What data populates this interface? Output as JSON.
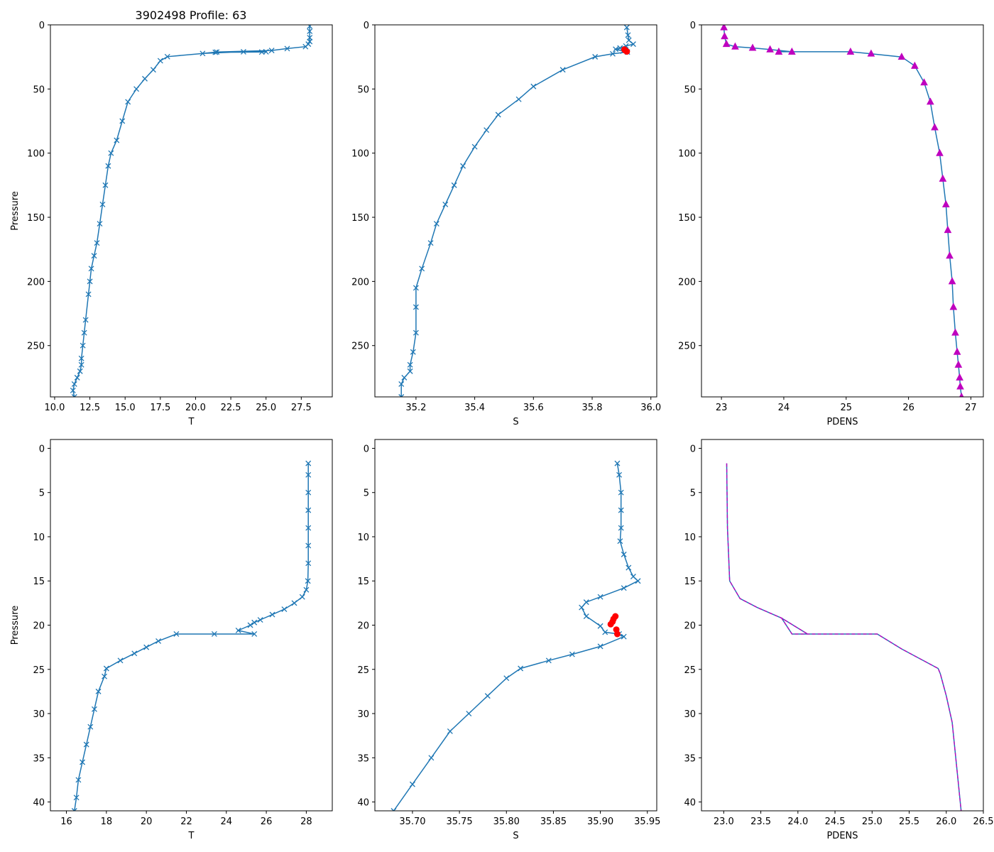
{
  "figure": {
    "title": "3902498 Profile: 63",
    "colors": {
      "series": "#1f77b4",
      "flagged": "#ff0000",
      "pdens": "#bf00bf",
      "axis": "#000000"
    }
  },
  "chart_data": [
    {
      "id": "T-full",
      "type": "line",
      "marker": "x",
      "xlabel": "T",
      "ylabel": "Pressure",
      "xlim": [
        9.7,
        29.7
      ],
      "ylim": [
        290,
        0
      ],
      "xticks": [
        10.0,
        12.5,
        15.0,
        17.5,
        20.0,
        22.5,
        25.0,
        27.5
      ],
      "xtick_labels": [
        "10.0",
        "12.5",
        "15.0",
        "17.5",
        "20.0",
        "22.5",
        "25.0",
        "27.5"
      ],
      "yticks": [
        0,
        50,
        100,
        150,
        200,
        250
      ],
      "ytick_labels": [
        "0",
        "50",
        "100",
        "150",
        "200",
        "250"
      ],
      "series": [
        {
          "name": "T",
          "x": [
            28.1,
            28.1,
            28.1,
            28.1,
            28.0,
            27.8,
            26.5,
            25.4,
            21.5,
            20.5,
            23.4,
            25.0,
            24.7,
            21.4,
            18.0,
            17.5,
            17.0,
            16.4,
            15.8,
            15.2,
            14.8,
            14.4,
            14.0,
            13.8,
            13.6,
            13.4,
            13.2,
            13.0,
            12.8,
            12.6,
            12.5,
            12.4,
            12.2,
            12.1,
            12.0,
            11.9,
            11.9,
            11.8,
            11.6,
            11.4,
            11.3,
            11.4
          ],
          "y": [
            1,
            5,
            10,
            13,
            15,
            17,
            18.5,
            20,
            21.2,
            22.3,
            21,
            21,
            21.2,
            21.4,
            24.8,
            28,
            35,
            42,
            50,
            60,
            75,
            90,
            100,
            110,
            125,
            140,
            155,
            170,
            180,
            190,
            200,
            210,
            230,
            240,
            250,
            260,
            265,
            270,
            275,
            280,
            285,
            290
          ]
        }
      ]
    },
    {
      "id": "S-full",
      "type": "line",
      "marker": "x",
      "xlabel": "S",
      "ylabel": "",
      "xlim": [
        35.06,
        36.02
      ],
      "ylim": [
        290,
        0
      ],
      "xticks": [
        35.2,
        35.4,
        35.6,
        35.8,
        36.0
      ],
      "xtick_labels": [
        "35.2",
        "35.4",
        "35.6",
        "35.8",
        "36.0"
      ],
      "yticks": [
        0,
        50,
        100,
        150,
        200,
        250
      ],
      "ytick_labels": [
        "0",
        "50",
        "100",
        "150",
        "200",
        "250"
      ],
      "series": [
        {
          "name": "S",
          "x": [
            35.918,
            35.922,
            35.925,
            35.94,
            35.915,
            35.895,
            35.88,
            35.905,
            35.92,
            35.87,
            35.81,
            35.7,
            35.6,
            35.55,
            35.48,
            35.44,
            35.4,
            35.36,
            35.33,
            35.3,
            35.27,
            35.25,
            35.22,
            35.2,
            35.2,
            35.2,
            35.19,
            35.18,
            35.18,
            35.16,
            35.15,
            35.15
          ],
          "y": [
            2,
            8,
            12,
            15,
            16.5,
            18,
            19,
            20.5,
            21.2,
            22.6,
            24.9,
            35,
            48,
            58,
            70,
            82,
            95,
            110,
            125,
            140,
            155,
            170,
            190,
            205,
            220,
            240,
            255,
            265,
            270,
            275,
            280,
            290
          ]
        }
      ],
      "flagged": {
        "x": [
          35.91,
          35.915,
          35.918,
          35.912
        ],
        "y": [
          19.2,
          20.2,
          20.8,
          19.8
        ]
      }
    },
    {
      "id": "PDENS-full",
      "type": "line",
      "marker": "^",
      "xlabel": "PDENS",
      "ylabel": "",
      "xlim": [
        22.68,
        27.2
      ],
      "ylim": [
        290,
        0
      ],
      "xticks": [
        23,
        24,
        25,
        26,
        27
      ],
      "xtick_labels": [
        "23",
        "24",
        "25",
        "26",
        "27"
      ],
      "yticks": [
        0,
        50,
        100,
        150,
        200,
        250
      ],
      "ytick_labels": [
        "0",
        "50",
        "100",
        "150",
        "200",
        "250"
      ],
      "series": [
        {
          "name": "PDENS",
          "x": [
            23.04,
            23.05,
            23.08,
            23.22,
            23.5,
            23.78,
            24.13,
            23.92,
            25.07,
            25.4,
            25.89,
            26.1,
            26.25,
            26.35,
            26.42,
            26.5,
            26.55,
            26.6,
            26.63,
            26.66,
            26.7,
            26.72,
            26.75,
            26.78,
            26.8,
            26.82,
            26.83,
            26.85
          ],
          "y": [
            2,
            9,
            15,
            17,
            18,
            19.2,
            21,
            21,
            21,
            22.5,
            25,
            32,
            45,
            60,
            80,
            100,
            120,
            140,
            160,
            180,
            200,
            220,
            240,
            255,
            265,
            275,
            282,
            290
          ]
        }
      ]
    },
    {
      "id": "T-zoom",
      "type": "line",
      "marker": "x",
      "xlabel": "T",
      "ylabel": "Pressure",
      "xlim": [
        15.2,
        29.3
      ],
      "ylim": [
        41,
        -1
      ],
      "xticks": [
        16,
        18,
        20,
        22,
        24,
        26,
        28
      ],
      "xtick_labels": [
        "16",
        "18",
        "20",
        "22",
        "24",
        "26",
        "28"
      ],
      "yticks": [
        0,
        5,
        10,
        15,
        20,
        25,
        30,
        35,
        40
      ],
      "ytick_labels": [
        "0",
        "5",
        "10",
        "15",
        "20",
        "25",
        "30",
        "35",
        "40"
      ],
      "series": [
        {
          "name": "T",
          "x": [
            28.1,
            28.1,
            28.1,
            28.1,
            28.1,
            28.1,
            28.1,
            28.08,
            28.0,
            27.8,
            27.4,
            26.9,
            26.3,
            25.7,
            25.4,
            25.2,
            24.6,
            25.4,
            23.4,
            21.5,
            20.6,
            20.0,
            19.4,
            18.7,
            18.0,
            17.9,
            17.6,
            17.4,
            17.2,
            17.0,
            16.8,
            16.6,
            16.5,
            16.4
          ],
          "y": [
            1.7,
            3,
            5,
            7,
            9,
            11,
            13,
            15,
            16,
            16.8,
            17.5,
            18.2,
            18.8,
            19.4,
            19.7,
            20,
            20.6,
            21,
            21,
            21,
            21.8,
            22.5,
            23.2,
            24,
            24.9,
            25.8,
            27.5,
            29.5,
            31.5,
            33.5,
            35.5,
            37.5,
            39.5,
            41
          ]
        }
      ]
    },
    {
      "id": "S-zoom",
      "type": "line",
      "marker": "x",
      "xlabel": "S",
      "ylabel": "",
      "xlim": [
        35.66,
        35.96
      ],
      "ylim": [
        41,
        -1
      ],
      "xticks": [
        35.7,
        35.75,
        35.8,
        35.85,
        35.9,
        35.95
      ],
      "xtick_labels": [
        "35.70",
        "35.75",
        "35.80",
        "35.85",
        "35.90",
        "35.95"
      ],
      "yticks": [
        0,
        5,
        10,
        15,
        20,
        25,
        30,
        35,
        40
      ],
      "ytick_labels": [
        "0",
        "5",
        "10",
        "15",
        "20",
        "25",
        "30",
        "35",
        "40"
      ],
      "series": [
        {
          "name": "S",
          "x": [
            35.918,
            35.92,
            35.922,
            35.922,
            35.922,
            35.921,
            35.925,
            35.93,
            35.935,
            35.94,
            35.925,
            35.9,
            35.885,
            35.88,
            35.885,
            35.9,
            35.905,
            35.92,
            35.925,
            35.9,
            35.87,
            35.845,
            35.815,
            35.8,
            35.78,
            35.76,
            35.74,
            35.72,
            35.7,
            35.68
          ],
          "y": [
            1.7,
            3,
            5,
            7,
            9,
            10.5,
            12,
            13.5,
            14.5,
            15,
            15.8,
            16.8,
            17.4,
            18,
            19,
            20.1,
            20.8,
            21,
            21.3,
            22.4,
            23.3,
            24,
            24.9,
            26,
            28,
            30,
            32,
            35,
            38,
            41
          ]
        }
      ],
      "flagged": {
        "x": [
          35.916,
          35.914,
          35.913,
          35.911,
          35.917,
          35.918
        ],
        "y": [
          19.0,
          19.3,
          19.6,
          19.9,
          20.5,
          21.0
        ]
      }
    },
    {
      "id": "PDENS-zoom",
      "type": "line",
      "marker": "none",
      "xlabel": "PDENS",
      "ylabel": "",
      "xlim": [
        22.7,
        26.5
      ],
      "ylim": [
        41,
        -1
      ],
      "xticks": [
        23.0,
        23.5,
        24.0,
        24.5,
        25.0,
        25.5,
        26.0,
        26.5
      ],
      "xtick_labels": [
        "23.0",
        "23.5",
        "24.0",
        "24.5",
        "25.0",
        "25.5",
        "26.0",
        "26.5"
      ],
      "yticks": [
        0,
        5,
        10,
        15,
        20,
        25,
        30,
        35,
        40
      ],
      "ytick_labels": [
        "0",
        "5",
        "10",
        "15",
        "20",
        "25",
        "30",
        "35",
        "40"
      ],
      "series": [
        {
          "name": "PDENS",
          "x": [
            23.04,
            23.05,
            23.08,
            23.22,
            23.45,
            23.78,
            24.13,
            23.78,
            23.92,
            25.07,
            25.4,
            25.89,
            25.92,
            26.0,
            26.08,
            26.14,
            26.2
          ],
          "y": [
            1.7,
            9,
            15,
            17,
            18,
            19.2,
            21,
            19.2,
            21,
            21,
            22.7,
            24.9,
            25.5,
            28,
            31,
            36,
            41
          ]
        }
      ]
    }
  ]
}
